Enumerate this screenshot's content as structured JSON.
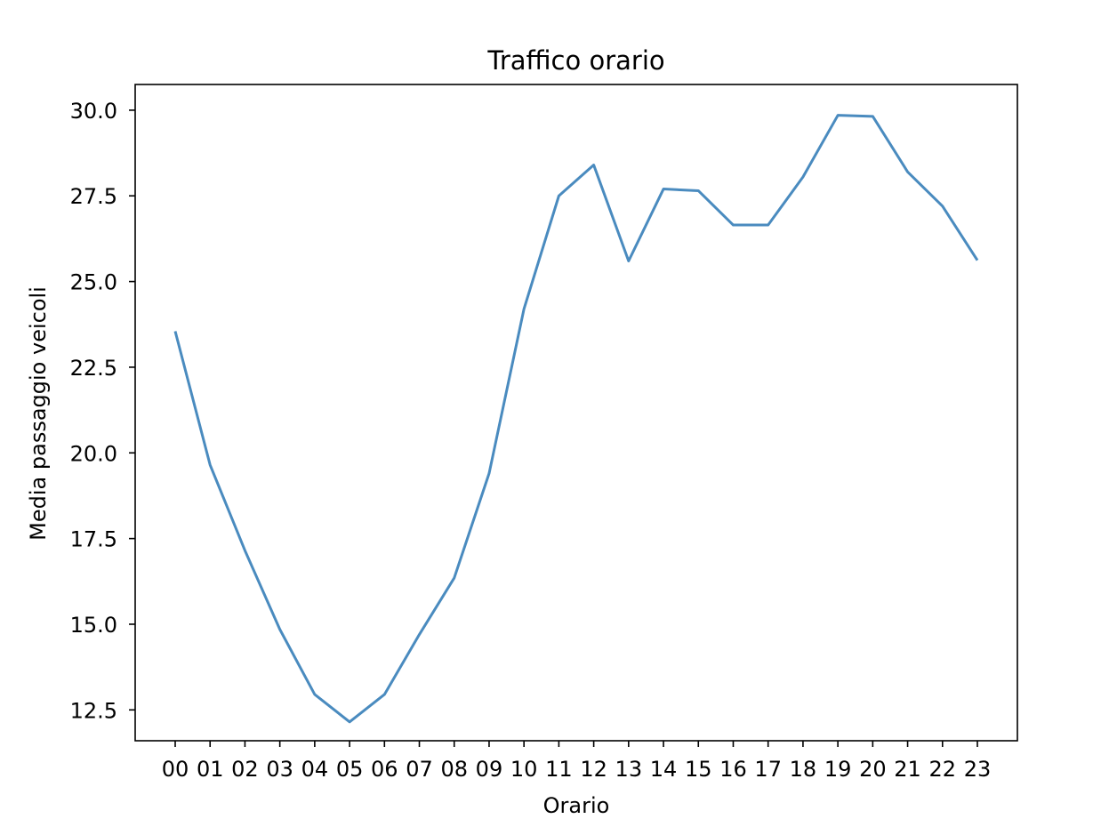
{
  "chart_data": {
    "type": "line",
    "title": "Traffico orario",
    "xlabel": "Orario",
    "ylabel": "Media passaggio veicoli",
    "categories": [
      "00",
      "01",
      "02",
      "03",
      "04",
      "05",
      "06",
      "07",
      "08",
      "09",
      "10",
      "11",
      "12",
      "13",
      "14",
      "15",
      "16",
      "17",
      "18",
      "19",
      "20",
      "21",
      "22",
      "23"
    ],
    "y_ticks": [
      "12.5",
      "15.0",
      "17.5",
      "20.0",
      "22.5",
      "25.0",
      "27.5",
      "30.0"
    ],
    "ylim": [
      11.6,
      30.75
    ],
    "grid": false,
    "legend": "none",
    "series": [
      {
        "color": "#4a8bbf",
        "values": [
          23.55,
          19.65,
          17.15,
          14.85,
          12.95,
          12.15,
          12.95,
          14.7,
          16.35,
          19.4,
          24.2,
          27.5,
          28.4,
          25.6,
          27.7,
          27.65,
          26.65,
          26.65,
          28.05,
          29.85,
          29.82,
          28.2,
          27.2,
          25.62
        ]
      }
    ]
  }
}
